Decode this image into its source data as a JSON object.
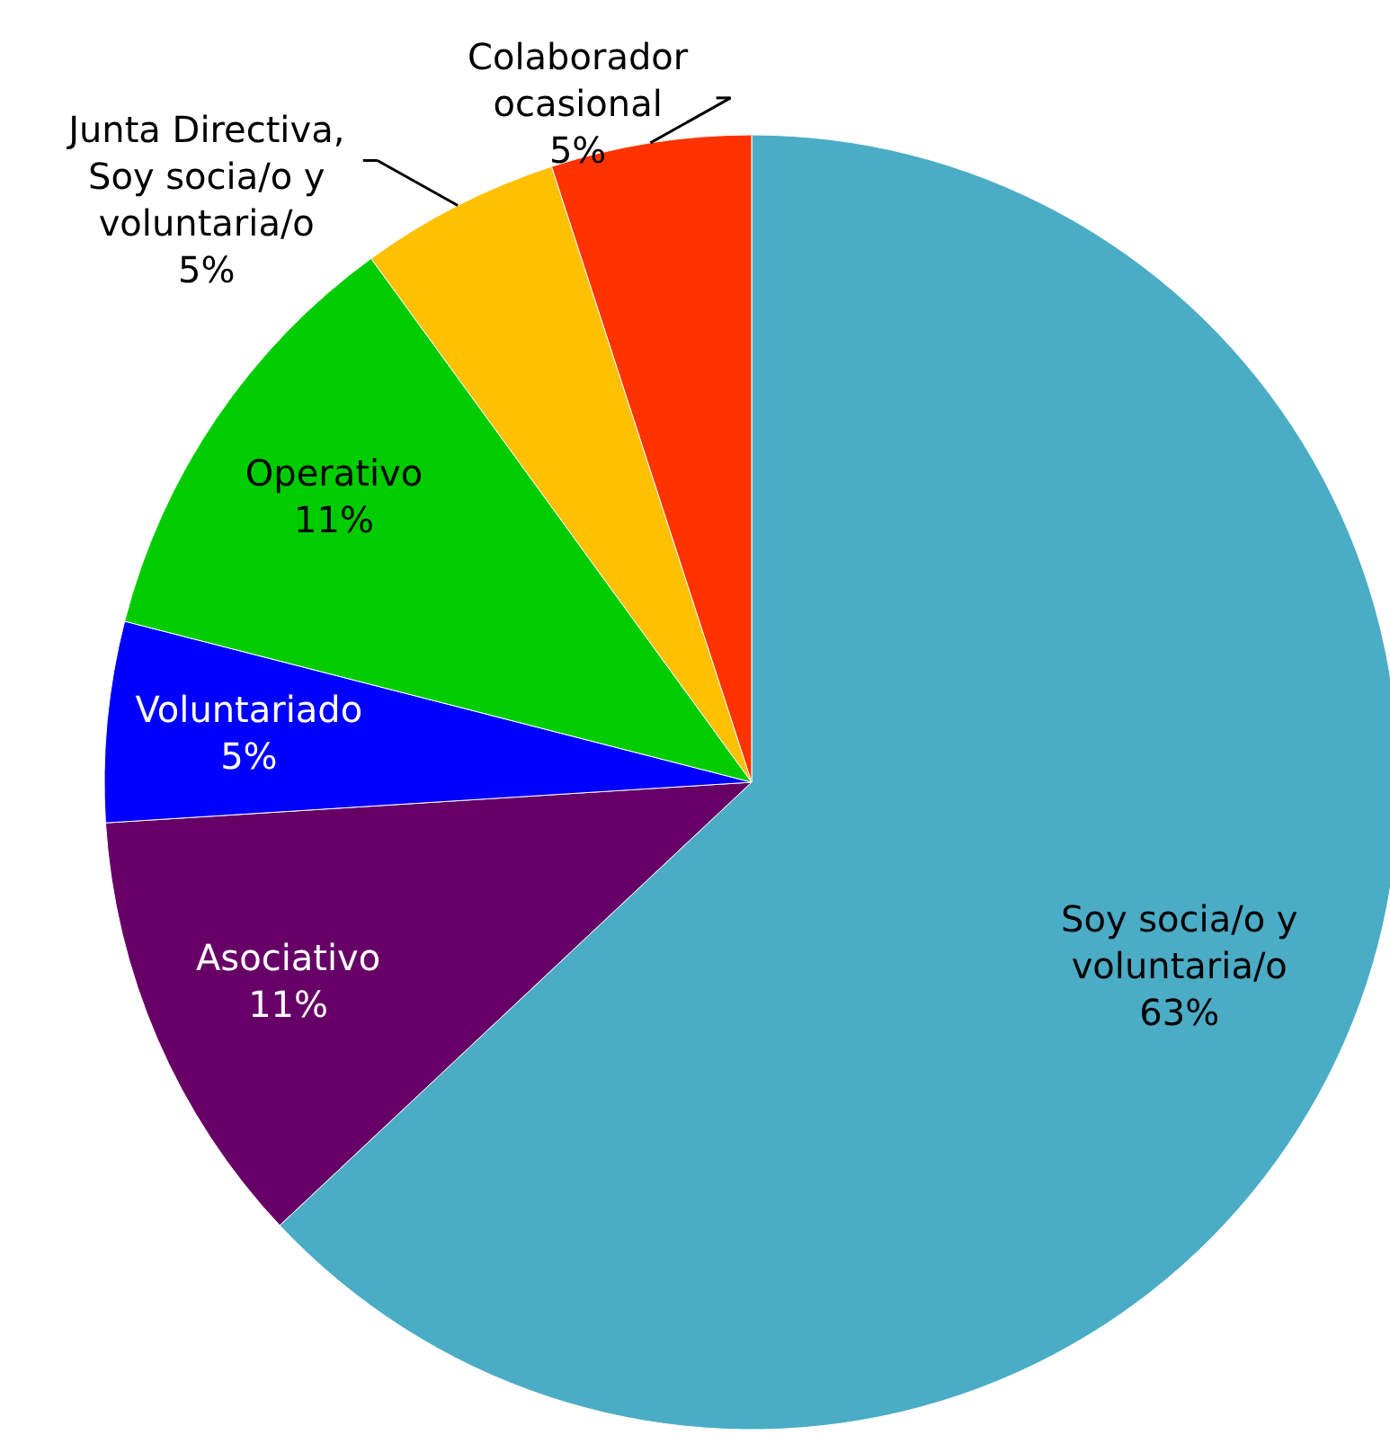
{
  "chart_data": {
    "type": "pie",
    "categories": [
      "Soy socia/o y voluntaria/o",
      "Asociativo",
      "Voluntariado",
      "Operativo",
      "Junta Directiva, Soy socia/o y voluntaria/o",
      "Colaborador ocasional"
    ],
    "values": [
      63,
      11,
      5,
      11,
      5,
      5
    ],
    "colors": [
      "#4bacc6",
      "#660066",
      "#0000ff",
      "#00cc00",
      "#ffc000",
      "#ff3300"
    ],
    "value_labels": [
      "63%",
      "11%",
      "5%",
      "11%",
      "5%",
      "5%"
    ],
    "data_labels": true
  }
}
